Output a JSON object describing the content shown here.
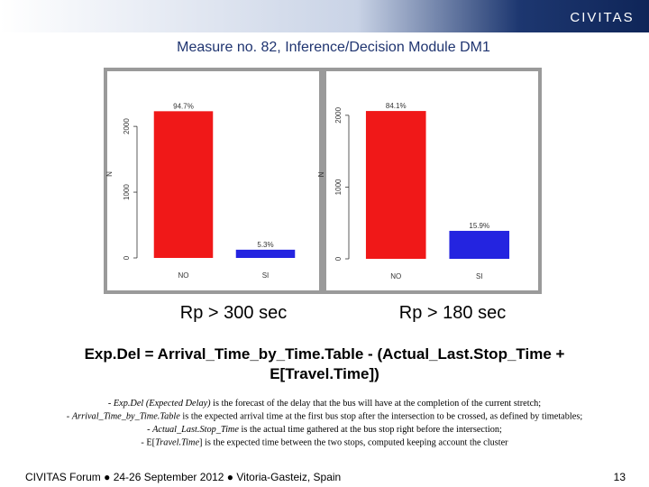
{
  "header": {
    "logo": "CIVITAS",
    "title": "Measure no. 82, Inference/Decision Module DM1"
  },
  "chart_data": [
    {
      "type": "bar",
      "ylabel": "N",
      "categories": [
        "NO",
        "SI"
      ],
      "values": [
        2230,
        125
      ],
      "colors": [
        "#f01818",
        "#2424e0"
      ],
      "annotations": [
        "94.7%",
        "5.3%"
      ],
      "ylim": [
        0,
        2550
      ],
      "yticks": [
        0,
        1000,
        2000
      ],
      "caption": "Rp > 300 sec"
    },
    {
      "type": "bar",
      "ylabel": "N",
      "categories": [
        "NO",
        "SI"
      ],
      "values": [
        2060,
        390
      ],
      "colors": [
        "#f01818",
        "#2424e0"
      ],
      "annotations": [
        "84.1%",
        "15.9%"
      ],
      "ylim": [
        0,
        2350
      ],
      "yticks": [
        0,
        1000,
        2000
      ],
      "caption": "Rp > 180 sec"
    }
  ],
  "formula": [
    "Exp.Del = Arrival_Time_by_Time.Table - (Actual_Last.Stop_Time +",
    "E[Travel.Time])"
  ],
  "definitions": [
    [
      {
        "text": "- "
      },
      {
        "text": "Exp.Del (Expected Delay)",
        "italic": true
      },
      {
        "text": " is the forecast of the delay that the bus will have at the completion of the current stretch;"
      }
    ],
    [
      {
        "text": "- "
      },
      {
        "text": "Arrival_Time_by_Time.Table",
        "italic": true
      },
      {
        "text": " is the expected arrival time at the first bus stop after the intersection to be crossed, as defined by timetables;"
      }
    ],
    [
      {
        "text": "- "
      },
      {
        "text": "Actual_Last.Stop_Time",
        "italic": true
      },
      {
        "text": " is the actual time gathered at the bus stop right before the intersection;"
      }
    ],
    [
      {
        "text": "- E["
      },
      {
        "text": "Travel.Time",
        "italic": true
      },
      {
        "text": "] is the expected time between the two stops, computed keeping account the cluster"
      }
    ]
  ],
  "footer": {
    "text": "CIVITAS Forum ● 24-26 September 2012 ● Vitoria-Gasteiz, Spain",
    "page": "13"
  }
}
